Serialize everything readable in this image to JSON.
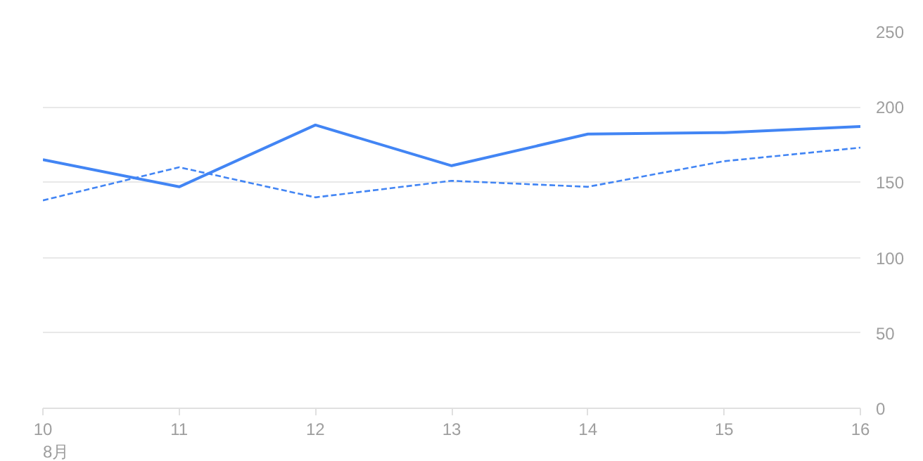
{
  "chart_data": {
    "type": "line",
    "categories": [
      "10",
      "11",
      "12",
      "13",
      "14",
      "15",
      "16"
    ],
    "series": [
      {
        "color": "#4285f4",
        "line_style": "solid",
        "values": [
          165,
          147,
          188,
          161,
          182,
          183,
          187
        ]
      },
      {
        "color": "#4285f4",
        "line_style": "dashed",
        "values": [
          138,
          160,
          140,
          151,
          147,
          164,
          173
        ]
      }
    ],
    "ylim": [
      0,
      250
    ],
    "yticks": [
      0,
      50,
      100,
      150,
      200,
      250
    ],
    "grid": "y",
    "marker": "none",
    "annotations": [
      "8月"
    ]
  }
}
